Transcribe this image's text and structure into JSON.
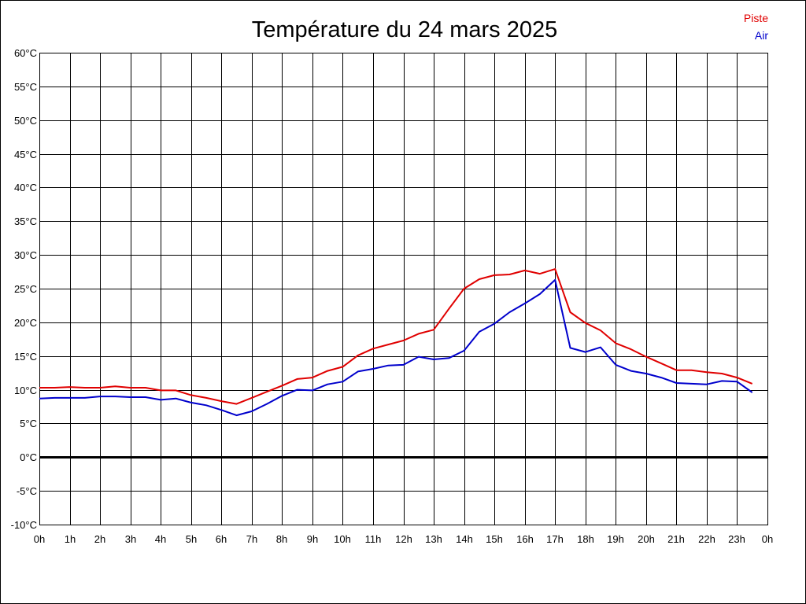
{
  "chart_data": {
    "type": "line",
    "title": "Température du 24 mars 2025",
    "xlabel": "",
    "ylabel": "",
    "xlim": [
      0,
      24
    ],
    "ylim": [
      -10,
      60
    ],
    "x_ticks": [
      "0h",
      "1h",
      "2h",
      "3h",
      "4h",
      "5h",
      "6h",
      "7h",
      "8h",
      "9h",
      "10h",
      "11h",
      "12h",
      "13h",
      "14h",
      "15h",
      "16h",
      "17h",
      "18h",
      "19h",
      "20h",
      "21h",
      "22h",
      "23h",
      "0h"
    ],
    "y_ticks": [
      "60°C",
      "55°C",
      "50°C",
      "45°C",
      "40°C",
      "35°C",
      "30°C",
      "25°C",
      "20°C",
      "15°C",
      "10°C",
      "5°C",
      "0°C",
      "-5°C",
      "-10°C"
    ],
    "grid": true,
    "legend_position": "top-right",
    "series": [
      {
        "name": "Piste",
        "color": "#e00000",
        "x": [
          0,
          0.5,
          1,
          1.5,
          2,
          2.5,
          3,
          3.5,
          4,
          4.5,
          5,
          5.5,
          6,
          6.5,
          7,
          7.5,
          8,
          8.5,
          9,
          9.5,
          10,
          10.5,
          11,
          11.5,
          12,
          12.5,
          13,
          13.5,
          14,
          14.5,
          15,
          15.5,
          16,
          16.5,
          17,
          17.5,
          18,
          18.5,
          19,
          19.5,
          20,
          20.5,
          21,
          21.5,
          22,
          22.5,
          23,
          23.5
        ],
        "values": [
          10.3,
          10.3,
          10.4,
          10.3,
          10.3,
          10.5,
          10.3,
          10.3,
          9.9,
          9.9,
          9.2,
          8.8,
          8.3,
          7.9,
          8.8,
          9.7,
          10.6,
          11.6,
          11.8,
          12.8,
          13.4,
          15.1,
          16.1,
          16.7,
          17.3,
          18.3,
          18.9,
          22.0,
          25.0,
          26.4,
          27.0,
          27.1,
          27.7,
          27.2,
          27.9,
          21.5,
          19.9,
          18.8,
          16.9,
          16.0,
          14.9,
          13.9,
          12.9,
          12.9,
          12.6,
          12.4,
          11.8,
          10.9
        ]
      },
      {
        "name": "Air",
        "color": "#0000cc",
        "x": [
          0,
          0.5,
          1,
          1.5,
          2,
          2.5,
          3,
          3.5,
          4,
          4.5,
          5,
          5.5,
          6,
          6.5,
          7,
          7.5,
          8,
          8.5,
          9,
          9.5,
          10,
          10.5,
          11,
          11.5,
          12,
          12.5,
          13,
          13.5,
          14,
          14.5,
          15,
          15.5,
          16,
          16.5,
          17,
          17.5,
          18,
          18.5,
          19,
          19.5,
          20,
          20.5,
          21,
          21.5,
          22,
          22.5,
          23,
          23.5
        ],
        "values": [
          8.7,
          8.8,
          8.8,
          8.8,
          9.0,
          9.0,
          8.9,
          8.9,
          8.5,
          8.7,
          8.1,
          7.7,
          7.0,
          6.2,
          6.8,
          7.9,
          9.1,
          10.0,
          9.9,
          10.8,
          11.2,
          12.7,
          13.1,
          13.6,
          13.7,
          14.9,
          14.5,
          14.7,
          15.8,
          18.6,
          19.8,
          21.5,
          22.8,
          24.2,
          26.3,
          16.2,
          15.6,
          16.3,
          13.7,
          12.8,
          12.4,
          11.8,
          11.0,
          10.9,
          10.8,
          11.3,
          11.2,
          9.6
        ]
      }
    ]
  }
}
